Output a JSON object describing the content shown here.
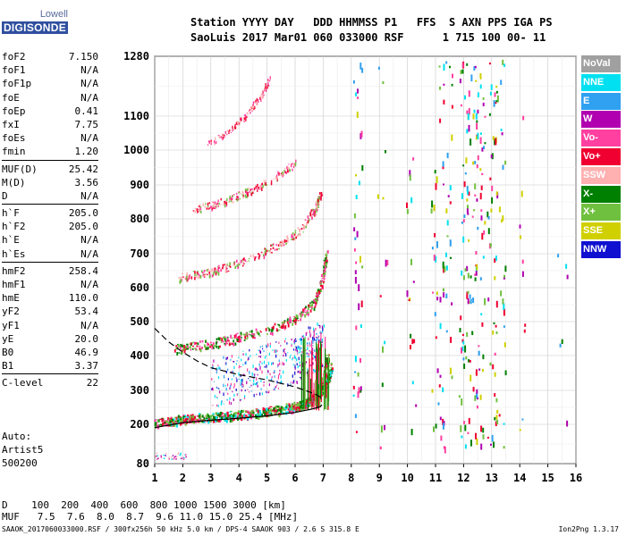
{
  "logo": {
    "top": "Lowell",
    "bottom": "DIGISONDE"
  },
  "header": {
    "line1": "Station YYYY DAY   DDD HHMMSS P1   FFS  S AXN PPS IGA PS",
    "line2": "SaoLuis 2017 Mar01 060 033000 RSF      1 715 100 00- 11"
  },
  "params": [
    [
      {
        "label": "foF2",
        "value": "7.150"
      },
      {
        "label": "foF1",
        "value": "N/A"
      },
      {
        "label": "foF1p",
        "value": "N/A"
      },
      {
        "label": "foE",
        "value": "N/A"
      },
      {
        "label": "foEp",
        "value": "0.41"
      },
      {
        "label": "fxI",
        "value": "7.75"
      },
      {
        "label": "foEs",
        "value": "N/A"
      },
      {
        "label": "fmin",
        "value": "1.20"
      }
    ],
    [
      {
        "label": "MUF(D)",
        "value": "25.42"
      },
      {
        "label": "M(D)",
        "value": "3.56"
      },
      {
        "label": "D",
        "value": "N/A"
      }
    ],
    [
      {
        "label": "h`F",
        "value": "205.0"
      },
      {
        "label": "h`F2",
        "value": "205.0"
      },
      {
        "label": "h`E",
        "value": "N/A"
      },
      {
        "label": "h`Es",
        "value": "N/A"
      }
    ],
    [
      {
        "label": "hmF2",
        "value": "258.4"
      },
      {
        "label": "hmF1",
        "value": "N/A"
      },
      {
        "label": "hmE",
        "value": "110.0"
      },
      {
        "label": "yF2",
        "value": "53.4"
      },
      {
        "label": "yF1",
        "value": "N/A"
      },
      {
        "label": "yE",
        "value": "20.0"
      },
      {
        "label": "B0",
        "value": "46.9"
      },
      {
        "label": "B1",
        "value": "3.37"
      }
    ],
    [
      {
        "label": "C-level",
        "value": "22"
      }
    ]
  ],
  "auto": {
    "line1": "Auto:",
    "line2": "Artist5",
    "line3": "500200"
  },
  "legend": [
    {
      "label": "NoVal",
      "color": "#a0a0a0"
    },
    {
      "label": "NNE",
      "color": "#00e0f0"
    },
    {
      "label": "E",
      "color": "#30a0f0"
    },
    {
      "label": "W",
      "color": "#b000b0"
    },
    {
      "label": "Vo-",
      "color": "#ff40a0"
    },
    {
      "label": "Vo+",
      "color": "#f00030"
    },
    {
      "label": "SSW",
      "color": "#ffb0b0"
    },
    {
      "label": "X-",
      "color": "#008000"
    },
    {
      "label": "X+",
      "color": "#70c040"
    },
    {
      "label": "SSE",
      "color": "#d0d000"
    },
    {
      "label": "NNW",
      "color": "#1010d0"
    }
  ],
  "dmuf": {
    "d_line": "D    100  200  400  600  800 1000 1500 3000 [km]",
    "muf_line": "MUF   7.5  7.6  8.0  8.7  9.6 11.0 15.0 25.4 [MHz]"
  },
  "footer": {
    "left": "SAAOK_2017060033000.RSF / 300fx256h 50 kHz 5.0 km / DPS-4 SAAOK 903 / 2.6 S 315.8 E",
    "right": "Ion2Png 1.3.17"
  },
  "chart_data": {
    "type": "scatter",
    "x_ticks": [
      1,
      2,
      3,
      4,
      5,
      6,
      7,
      8,
      9,
      10,
      11,
      12,
      13,
      14,
      15,
      16
    ],
    "y_ticks": [
      80,
      200,
      300,
      400,
      500,
      600,
      700,
      800,
      900,
      1000,
      1100,
      1280
    ],
    "xlim": [
      1,
      16
    ],
    "ylim": [
      80,
      1280
    ],
    "y_scale": "nonuniform",
    "grid": true,
    "legend_placement": "right",
    "curves": {
      "profile_solid": [
        [
          1.0,
          190
        ],
        [
          2,
          205
        ],
        [
          3,
          212
        ],
        [
          4,
          218
        ],
        [
          5,
          225
        ],
        [
          6,
          235
        ],
        [
          6.6,
          245
        ],
        [
          6.9,
          252
        ],
        [
          6.95,
          258
        ]
      ],
      "profile_dashed": [
        [
          1.0,
          480
        ],
        [
          1.5,
          440
        ],
        [
          2,
          410
        ],
        [
          2.5,
          385
        ],
        [
          3,
          365
        ],
        [
          4,
          345
        ],
        [
          5,
          330
        ],
        [
          6,
          310
        ],
        [
          6.7,
          290
        ],
        [
          7.0,
          275
        ]
      ]
    },
    "traces": [
      {
        "name": "O-trace F1",
        "points": [
          [
            1.0,
            205
          ],
          [
            1.5,
            212
          ],
          [
            2,
            218
          ],
          [
            3,
            222
          ],
          [
            4,
            228
          ],
          [
            5,
            238
          ],
          [
            6,
            252
          ],
          [
            6.5,
            268
          ],
          [
            6.8,
            290
          ],
          [
            7.0,
            330
          ],
          [
            7.15,
            400
          ]
        ]
      },
      {
        "name": "X-trace F1",
        "points": [
          [
            1.5,
            210
          ],
          [
            2.5,
            220
          ],
          [
            3.5,
            226
          ],
          [
            4.5,
            233
          ],
          [
            5.5,
            245
          ],
          [
            6.3,
            262
          ],
          [
            6.8,
            285
          ],
          [
            7.1,
            320
          ],
          [
            7.3,
            370
          ]
        ]
      },
      {
        "name": "multiple hop 2",
        "points": [
          [
            1.7,
            420
          ],
          [
            2.5,
            430
          ],
          [
            3.5,
            445
          ],
          [
            4.5,
            465
          ],
          [
            5.5,
            490
          ],
          [
            6.2,
            520
          ],
          [
            6.7,
            560
          ],
          [
            6.95,
            620
          ],
          [
            7.1,
            700
          ]
        ]
      },
      {
        "name": "multiple hop 3",
        "points": [
          [
            1.8,
            630
          ],
          [
            2.5,
            640
          ],
          [
            3.5,
            660
          ],
          [
            4.5,
            690
          ],
          [
            5.5,
            730
          ],
          [
            6.2,
            770
          ],
          [
            6.7,
            830
          ],
          [
            6.9,
            880
          ]
        ]
      },
      {
        "name": "multiple hop 4",
        "points": [
          [
            2.4,
            830
          ],
          [
            3.2,
            845
          ],
          [
            4.0,
            870
          ],
          [
            4.8,
            900
          ],
          [
            5.5,
            935
          ],
          [
            6.0,
            965
          ]
        ]
      },
      {
        "name": "multiple hop 5",
        "points": [
          [
            2.9,
            1020
          ],
          [
            3.5,
            1050
          ],
          [
            4.0,
            1085
          ],
          [
            4.4,
            1120
          ],
          [
            4.8,
            1165
          ],
          [
            5.1,
            1215
          ]
        ]
      },
      {
        "name": "spread scatter",
        "points": [
          [
            3.0,
            320
          ],
          [
            4.0,
            340
          ],
          [
            5.0,
            365
          ],
          [
            6.0,
            390
          ],
          [
            6.5,
            420
          ],
          [
            7.0,
            430
          ]
        ]
      }
    ]
  }
}
